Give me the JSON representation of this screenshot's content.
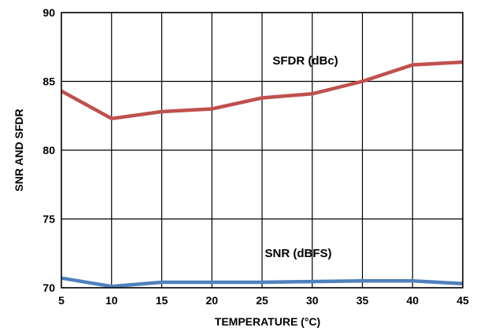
{
  "chart_data": {
    "type": "line",
    "title": "",
    "xlabel": "TEMPERATURE (°C)",
    "ylabel": "SNR AND SFDR",
    "xlim": [
      5,
      45
    ],
    "ylim": [
      70,
      90
    ],
    "x_ticks": [
      5,
      10,
      15,
      20,
      25,
      30,
      35,
      40,
      45
    ],
    "y_ticks": [
      70,
      75,
      80,
      85,
      90
    ],
    "grid": true,
    "x": [
      5,
      10,
      15,
      20,
      25,
      30,
      35,
      40,
      45
    ],
    "series": [
      {
        "name": "SFDR (dBc)",
        "color": "#c0504d",
        "values": [
          84.3,
          82.3,
          82.8,
          83.0,
          83.8,
          84.1,
          85.0,
          86.2,
          86.4
        ]
      },
      {
        "name": "SNR (dBFS)",
        "color": "#4f81bd",
        "values": [
          70.7,
          70.1,
          70.4,
          70.4,
          70.4,
          70.45,
          70.5,
          70.5,
          70.3
        ]
      }
    ]
  }
}
